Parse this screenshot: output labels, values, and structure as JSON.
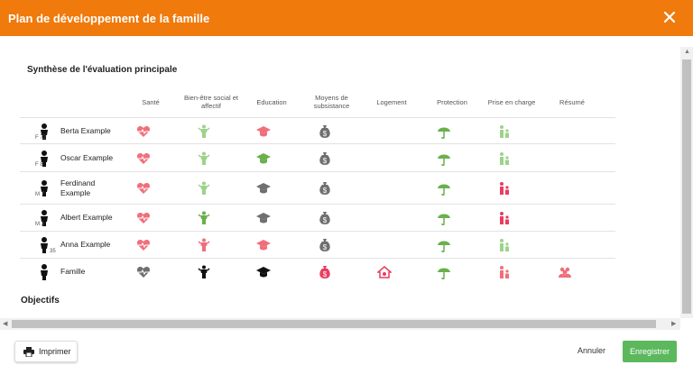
{
  "dialog": {
    "title": "Plan de développement de la famille",
    "close_icon": "close-icon"
  },
  "summary": {
    "title": "Synthèse de l'évaluation principale",
    "columns": [
      "Santé",
      "Bien-être social et affectif",
      "Education",
      "Moyens de subsistance",
      "Logement",
      "Protection",
      "Prise en charge",
      "Résumé"
    ],
    "rows": [
      {
        "name": "Berta Example",
        "avatar_label": "F 72",
        "cells": [
          "heart-pulse-icon:light-red",
          "person-icon:light-green",
          "graduation-cap-icon:light-red",
          "money-bag-icon:dark-grey",
          "",
          "umbrella-icon:green",
          "family-icon:light-green",
          ""
        ]
      },
      {
        "name": "Oscar Example",
        "avatar_label": "F 8",
        "cells": [
          "heart-pulse-icon:light-red",
          "person-icon:light-green",
          "graduation-cap-icon:green",
          "money-bag-icon:dark-grey",
          "",
          "umbrella-icon:green",
          "family-icon:light-green",
          ""
        ]
      },
      {
        "name": "Ferdinand Example",
        "avatar_label": "M 7",
        "cells": [
          "heart-pulse-icon:light-red",
          "person-icon:light-green",
          "graduation-cap-icon:dark-grey",
          "money-bag-icon:dark-grey",
          "",
          "umbrella-icon:green",
          "family-icon:red",
          ""
        ]
      },
      {
        "name": "Albert Example",
        "avatar_label": "M 3",
        "cells": [
          "heart-pulse-icon:light-red",
          "person-icon:green",
          "graduation-cap-icon:dark-grey",
          "money-bag-icon:dark-grey",
          "",
          "umbrella-icon:green",
          "family-icon:red",
          ""
        ]
      },
      {
        "name": "Anna Example",
        "avatar_label": "35",
        "cells": [
          "heart-pulse-icon:light-red",
          "person-icon:light-red",
          "graduation-cap-icon:light-red",
          "money-bag-icon:dark-grey",
          "",
          "umbrella-icon:green",
          "family-icon:light-green",
          ""
        ]
      },
      {
        "name": "Famille",
        "avatar_label": "",
        "cells": [
          "heart-pulse-icon:dark-grey",
          "person-icon:black",
          "graduation-cap-icon:black",
          "money-bag-icon:red",
          "house-icon:red",
          "umbrella-icon:green",
          "family-icon:light-red",
          "group-icon:light-red"
        ]
      }
    ]
  },
  "objectives": {
    "title": "Objectifs"
  },
  "footer": {
    "print_label": "Imprimer",
    "cancel_label": "Annuler",
    "save_label": "Enregistrer"
  },
  "colors": {
    "header": "#f07a0c",
    "save": "#5cb85c",
    "light-red": "#f06f7b",
    "red": "#e83e5f",
    "green": "#6ab04c",
    "light-green": "#9cd38a",
    "dark-grey": "#6f6f6f",
    "black": "#111111"
  }
}
